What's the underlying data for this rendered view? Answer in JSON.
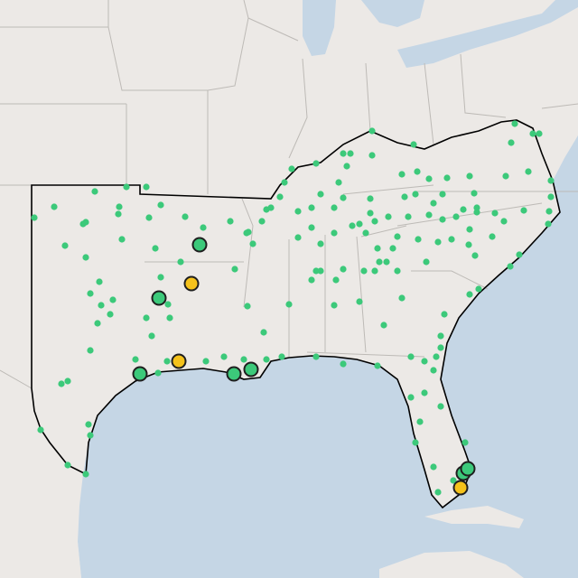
{
  "map": {
    "land_color": "#ece9e6",
    "water_color": "#c5d6e5",
    "border_color": "#bdbab6",
    "region_outline_color": "#000000",
    "small_marker_color": "#3cc97a",
    "large_green_color": "#3cc97a",
    "large_yellow_color": "#f5c21b",
    "large_marker_stroke": "#1f1f1f"
  }
}
